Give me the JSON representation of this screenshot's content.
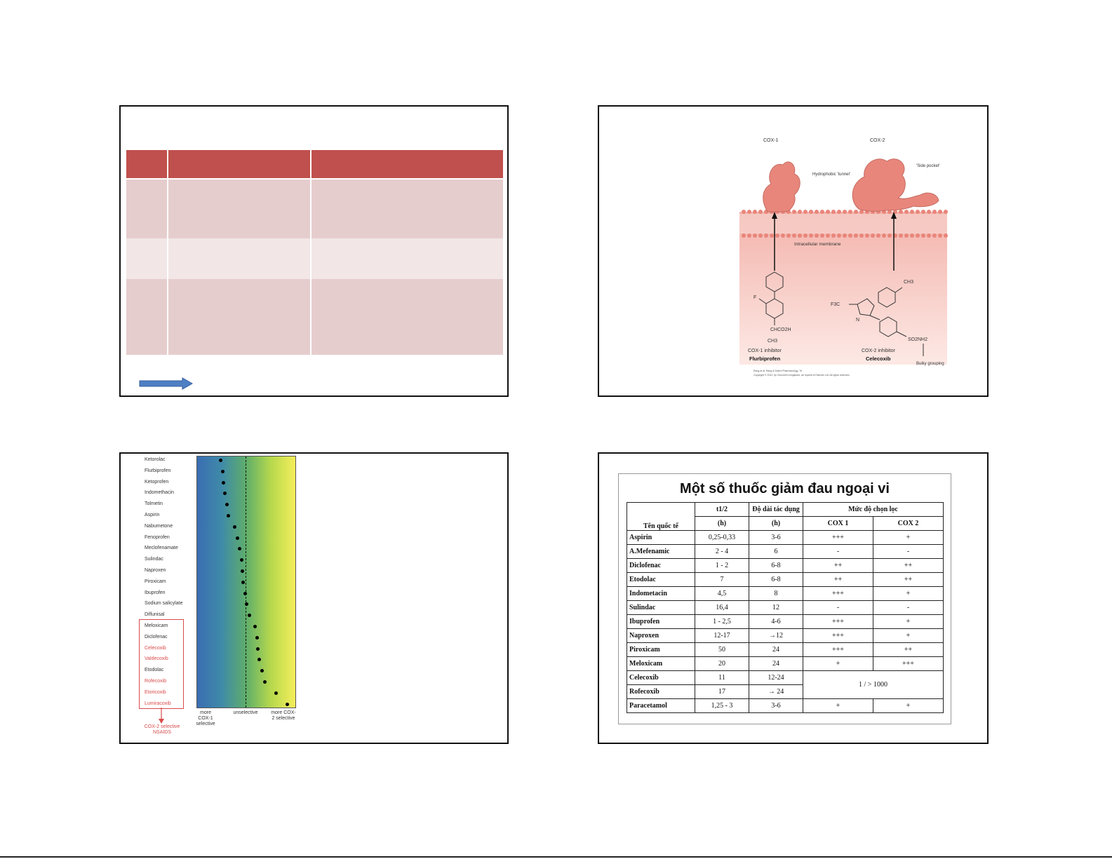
{
  "slide4": {
    "title": "Một số thuốc giảm đau ngoại vi",
    "headers": {
      "name": "Tên quốc tế",
      "half_life": "t1/2",
      "half_life_unit": "(h)",
      "duration": "Độ dài tác dụng",
      "duration_unit": "(h)",
      "selectivity": "Mức độ chọn lọc",
      "cox1": "COX 1",
      "cox2": "COX 2"
    },
    "rows": [
      {
        "name": "Aspirin",
        "t": "0,25-0,33",
        "d": "3-6",
        "c1": "+++",
        "c2": "+"
      },
      {
        "name": "A.Mefenamic",
        "t": "2 - 4",
        "d": "6",
        "c1": "-",
        "c2": "-"
      },
      {
        "name": "Diclofenac",
        "t": "1 - 2",
        "d": "6-8",
        "c1": "++",
        "c2": "++"
      },
      {
        "name": "Etodolac",
        "t": "7",
        "d": "6-8",
        "c1": "++",
        "c2": "++"
      },
      {
        "name": "Indometacin",
        "t": "4,5",
        "d": "8",
        "c1": "+++",
        "c2": "+"
      },
      {
        "name": "Sulindac",
        "t": "16,4",
        "d": "12",
        "c1": "-",
        "c2": "-"
      },
      {
        "name": "Ibuprofen",
        "t": "1 - 2,5",
        "d": "4-6",
        "c1": "+++",
        "c2": "+"
      },
      {
        "name": "Naproxen",
        "t": "12-17",
        "d": "→12",
        "c1": "+++",
        "c2": "+"
      },
      {
        "name": "Piroxicam",
        "t": "50",
        "d": "24",
        "c1": "+++",
        "c2": "++"
      },
      {
        "name": "Meloxicam",
        "t": "20",
        "d": "24",
        "c1": "+",
        "c2": "+++"
      }
    ],
    "celecoxib": {
      "name": "Celecoxib",
      "t": "11",
      "d": "12-24"
    },
    "rofecoxib": {
      "name": "Rofecoxib",
      "t": "17",
      "d": "→ 24"
    },
    "merged_ratio": "1 / > 1000",
    "paracetamol": {
      "name": "Paracetamol",
      "t": "1,25 - 3",
      "d": "3-6",
      "c1": "+",
      "c2": "+"
    }
  },
  "slide2": {
    "cox1_label": "COX-1",
    "cox2_label": "COX-2",
    "tunnel_label": "Hydrophobic 'tunnel'",
    "side_pocket_label": "'Side pocket'",
    "membrane_label": "Intracellular membrane",
    "cox1_inhibitor": "COX-1 inhibitor",
    "flurbiprofen": "Flurbiprofen",
    "cox2_inhibitor": "COX-2 inhibitor",
    "celecoxib": "Celecoxib",
    "bulky": "Bulky grouping",
    "f_label": "F",
    "chco2h": "CHCO2H",
    "ch3a": "CH3",
    "ch3b": "CH3",
    "f3c": "F3C",
    "n_label": "N",
    "so2nh2": "SO2NH2",
    "credit1": "Rang et al: Rang & Dale's Pharmacology, 7e.",
    "credit2": "Copyright © 2012, by Churchill Livingstone, an imprint of Elsevier Ltd. All rights reserved."
  },
  "slide3": {
    "drugs": [
      "Ketorolac",
      "Flurbiprofen",
      "Ketoprofen",
      "Indomethacin",
      "Tolmetin",
      "Aspirin",
      "Nabumetone",
      "Fenoprofen",
      "Meclofenamate",
      "Sulindac",
      "Naproxen",
      "Piroxicam",
      "Ibuprofen",
      "Sodium salicylate",
      "Diflunisal",
      "Meloxicam",
      "Diclofenac",
      "Celecoxib",
      "Valdecoxib",
      "Etodolac",
      "Rofecoxib",
      "Etoricoxib",
      "Lumiracoxib"
    ],
    "red_drugs": [
      17,
      18,
      20,
      21,
      22
    ],
    "dot_positions": [
      0.24,
      0.26,
      0.27,
      0.28,
      0.3,
      0.32,
      0.38,
      0.41,
      0.43,
      0.45,
      0.46,
      0.47,
      0.49,
      0.5,
      0.53,
      0.59,
      0.61,
      0.62,
      0.63,
      0.66,
      0.69,
      0.8,
      0.92
    ],
    "axis_left": "more COX-1 selective",
    "axis_mid": "unselective",
    "axis_right": "more COX-2 selective",
    "caption": "COX-2 selective NSAIDS"
  }
}
